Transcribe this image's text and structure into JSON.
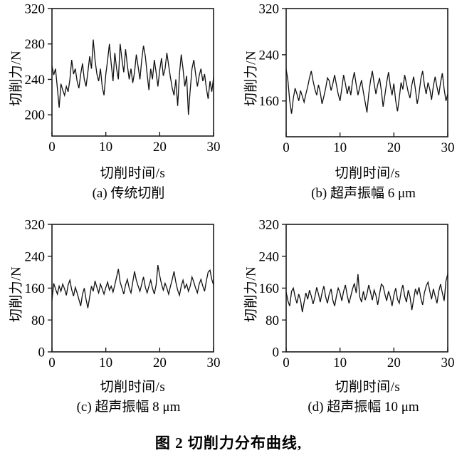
{
  "figure": {
    "caption": "图 2  切削力分布曲线,"
  },
  "chart_data": [
    {
      "type": "line",
      "panel": "a",
      "caption": "(a)  传统切削",
      "xlabel": "切削时间/s",
      "ylabel": "切削力/N",
      "xlim": [
        0,
        30
      ],
      "xticks": [
        0,
        10,
        20,
        30
      ],
      "ylim": [
        176,
        320
      ],
      "yticks": [
        200,
        240,
        280,
        320
      ],
      "line_color": "#111111",
      "grid": false,
      "values": [
        255,
        245,
        252,
        230,
        208,
        235,
        228,
        222,
        232,
        226,
        240,
        262,
        246,
        252,
        238,
        230,
        246,
        258,
        240,
        232,
        248,
        266,
        252,
        285,
        262,
        246,
        238,
        252,
        232,
        222,
        246,
        262,
        280,
        258,
        238,
        270,
        252,
        240,
        280,
        262,
        248,
        274,
        256,
        240,
        252,
        236,
        248,
        268,
        254,
        240,
        262,
        278,
        266,
        246,
        228,
        252,
        240,
        262,
        248,
        232,
        250,
        264,
        244,
        252,
        270,
        256,
        242,
        230,
        222,
        240,
        210,
        246,
        268,
        252,
        232,
        244,
        200,
        228,
        252,
        262,
        246,
        232,
        244,
        252,
        238,
        246,
        230,
        218,
        238,
        226,
        242
      ]
    },
    {
      "type": "line",
      "panel": "b",
      "caption": "(b)  超声振幅 6 μm",
      "xlabel": "切削时间/s",
      "ylabel": "切削力/N",
      "xlim": [
        0,
        30
      ],
      "xticks": [
        0,
        10,
        20,
        30
      ],
      "ylim": [
        98,
        320
      ],
      "yticks": [
        160,
        240,
        320
      ],
      "line_color": "#111111",
      "grid": false,
      "values": [
        215,
        195,
        160,
        138,
        165,
        182,
        172,
        160,
        178,
        168,
        158,
        172,
        185,
        200,
        212,
        195,
        180,
        170,
        188,
        175,
        155,
        168,
        182,
        200,
        195,
        178,
        190,
        205,
        188,
        172,
        160,
        182,
        205,
        190,
        172,
        186,
        170,
        195,
        210,
        188,
        170,
        184,
        196,
        175,
        158,
        140,
        172,
        195,
        212,
        190,
        172,
        188,
        200,
        178,
        150,
        170,
        192,
        210,
        186,
        170,
        190,
        160,
        142,
        165,
        192,
        180,
        205,
        190,
        175,
        165,
        188,
        202,
        180,
        155,
        172,
        198,
        212,
        188,
        172,
        192,
        180,
        162,
        186,
        202,
        184,
        170,
        192,
        208,
        180,
        160,
        172
      ]
    },
    {
      "type": "line",
      "panel": "c",
      "caption": "(c)  超声振幅 8 μm",
      "xlabel": "切削时间/s",
      "ylabel": "切削力/N",
      "xlim": [
        0,
        30
      ],
      "xticks": [
        0,
        10,
        20,
        30
      ],
      "ylim": [
        0,
        320
      ],
      "yticks": [
        0,
        80,
        160,
        240,
        320
      ],
      "line_color": "#111111",
      "grid": false,
      "values": [
        130,
        172,
        158,
        145,
        165,
        152,
        170,
        158,
        142,
        168,
        180,
        156,
        140,
        162,
        148,
        132,
        115,
        145,
        160,
        132,
        110,
        138,
        165,
        152,
        178,
        162,
        148,
        170,
        158,
        145,
        162,
        175,
        155,
        165,
        150,
        168,
        188,
        208,
        175,
        160,
        145,
        168,
        182,
        160,
        148,
        175,
        202,
        180,
        165,
        152,
        170,
        188,
        162,
        148,
        165,
        180,
        160,
        145,
        168,
        218,
        192,
        170,
        155,
        172,
        160,
        145,
        165,
        182,
        202,
        175,
        155,
        142,
        165,
        180,
        160,
        170,
        152,
        165,
        188,
        175,
        160,
        148,
        170,
        182,
        165,
        152,
        178,
        200,
        205,
        182,
        168
      ]
    },
    {
      "type": "line",
      "panel": "d",
      "caption": "(d)  超声振幅 10 μm",
      "xlabel": "切削时间/s",
      "ylabel": "切削力/N",
      "xlim": [
        0,
        30
      ],
      "xticks": [
        0,
        10,
        20,
        30
      ],
      "ylim": [
        0,
        320
      ],
      "yticks": [
        0,
        80,
        160,
        240,
        320
      ],
      "line_color": "#111111",
      "grid": false,
      "values": [
        150,
        128,
        115,
        152,
        160,
        138,
        122,
        145,
        130,
        100,
        125,
        148,
        132,
        155,
        140,
        120,
        138,
        162,
        145,
        125,
        148,
        165,
        138,
        122,
        145,
        158,
        130,
        115,
        140,
        160,
        148,
        128,
        152,
        168,
        142,
        122,
        140,
        158,
        172,
        148,
        195,
        138,
        125,
        152,
        130,
        145,
        168,
        150,
        130,
        155,
        142,
        118,
        145,
        170,
        165,
        145,
        128,
        152,
        138,
        115,
        142,
        160,
        132,
        122,
        150,
        168,
        140,
        125,
        155,
        138,
        105,
        132,
        158,
        145,
        162,
        135,
        118,
        148,
        165,
        175,
        152,
        132,
        158,
        140,
        122,
        152,
        170,
        148,
        128,
        178,
        195
      ]
    }
  ]
}
